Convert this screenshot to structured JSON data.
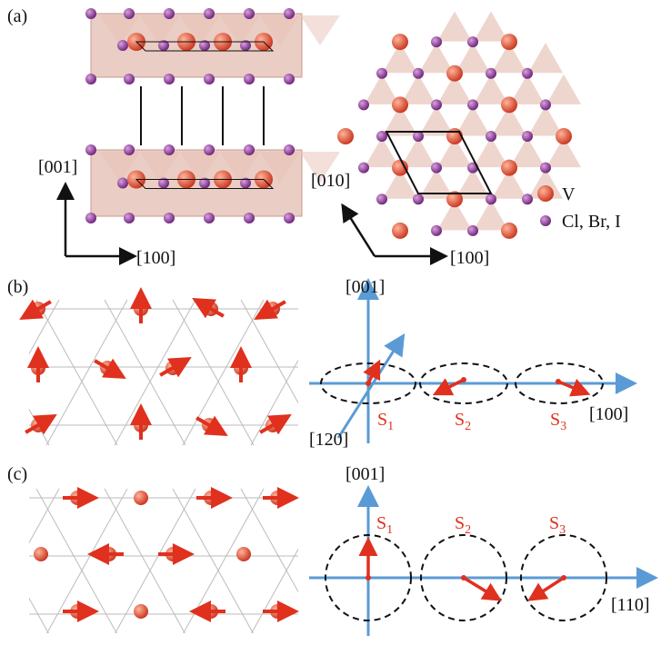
{
  "panel_a": {
    "label": "(a)",
    "side_view": {
      "axis_vertical": "[001]",
      "axis_horizontal": "[100]"
    },
    "top_view": {
      "axis_diagonal": "[010]",
      "axis_horizontal": "[100]"
    },
    "legend": {
      "items": [
        {
          "label": "V"
        },
        {
          "label": "Cl, Br, I"
        }
      ]
    }
  },
  "panel_b": {
    "label": "(b)",
    "axes": {
      "vertical": "[001]",
      "diagonal": "[120]",
      "horizontal": "[100]"
    },
    "sites": [
      {
        "symbol": "S",
        "subscript": "1"
      },
      {
        "symbol": "S",
        "subscript": "2"
      },
      {
        "symbol": "S",
        "subscript": "3"
      }
    ]
  },
  "panel_c": {
    "label": "(c)",
    "axes": {
      "vertical": "[001]",
      "horizontal": "[110]"
    },
    "sites": [
      {
        "symbol": "S",
        "subscript": "1"
      },
      {
        "symbol": "S",
        "subscript": "2"
      },
      {
        "symbol": "S",
        "subscript": "3"
      }
    ]
  }
}
